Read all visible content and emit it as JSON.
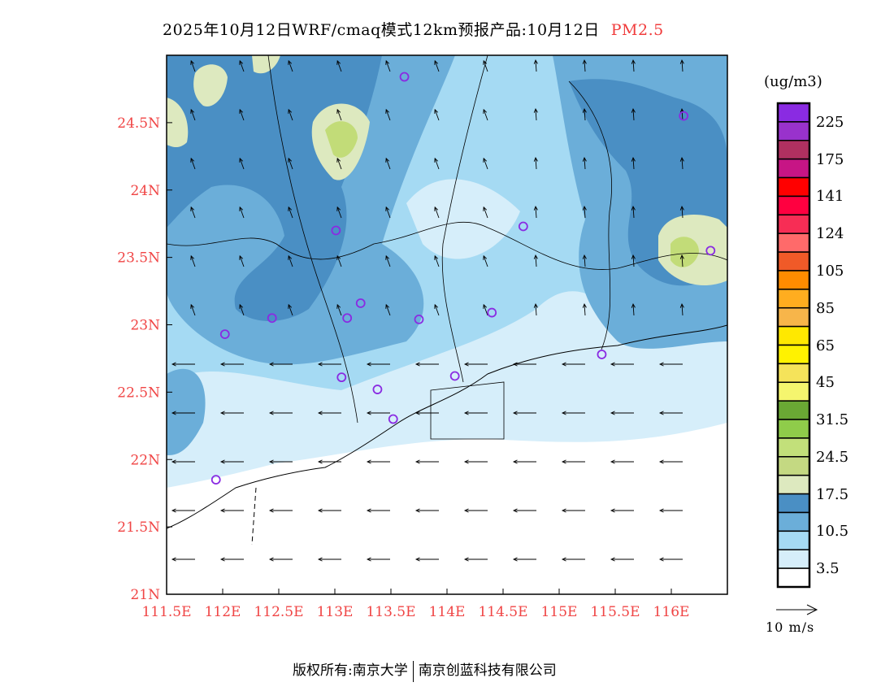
{
  "title": {
    "main": "2025年10月12日WRF/cmaq模式12km预报产品:10月12日",
    "pollutant": "PM2.5"
  },
  "legend": {
    "unit": "(ug/m3)",
    "colors": [
      "#8a2be2",
      "#9932cc",
      "#b03060",
      "#c71585",
      "#ff0000",
      "#ff0040",
      "#f72d55",
      "#ff6a6a",
      "#f05a28",
      "#ff8c00",
      "#ffad1f",
      "#f7b54a",
      "#ffe800",
      "#fff200",
      "#f5e35a",
      "#f5f56e",
      "#6aa834",
      "#8fcc4a",
      "#c2e07a",
      "#c4d982",
      "#dde9bf",
      "#4a8fc4",
      "#6baed9",
      "#a5daf3",
      "#d6eefa",
      "#ffffff"
    ],
    "labels": [
      "225",
      "175",
      "141",
      "124",
      "105",
      "85",
      "65",
      "45",
      "31.5",
      "24.5",
      "17.5",
      "10.5",
      "3.5"
    ],
    "wind_ref": "10 m/s"
  },
  "axes": {
    "x_ticks": [
      "111.5E",
      "112E",
      "112.5E",
      "113E",
      "113.5E",
      "114E",
      "114.5E",
      "115E",
      "115.5E",
      "116E"
    ],
    "x_values": [
      111.5,
      112,
      112.5,
      113,
      113.5,
      114,
      114.5,
      115,
      115.5,
      116
    ],
    "y_ticks": [
      "21N",
      "21.5N",
      "22N",
      "22.5N",
      "23N",
      "23.5N",
      "24N",
      "24.5N"
    ],
    "y_values": [
      21,
      21.5,
      22,
      22.5,
      23,
      23.5,
      24,
      24.5
    ],
    "lon_range": [
      111.5,
      116.5
    ],
    "lat_range": [
      21,
      25
    ]
  },
  "stations": [
    [
      113.62,
      24.84
    ],
    [
      116.11,
      24.55
    ],
    [
      113.01,
      23.7
    ],
    [
      114.68,
      23.73
    ],
    [
      116.35,
      23.55
    ],
    [
      113.23,
      23.16
    ],
    [
      112.44,
      23.05
    ],
    [
      112.02,
      22.93
    ],
    [
      113.11,
      23.05
    ],
    [
      113.75,
      23.04
    ],
    [
      114.4,
      23.09
    ],
    [
      115.38,
      22.78
    ],
    [
      113.06,
      22.61
    ],
    [
      114.07,
      22.62
    ],
    [
      113.38,
      22.52
    ],
    [
      113.52,
      22.3
    ],
    [
      111.94,
      21.85
    ]
  ],
  "footer": {
    "left": "版权所有:南京大学",
    "right": "南京创蓝科技有限公司"
  }
}
